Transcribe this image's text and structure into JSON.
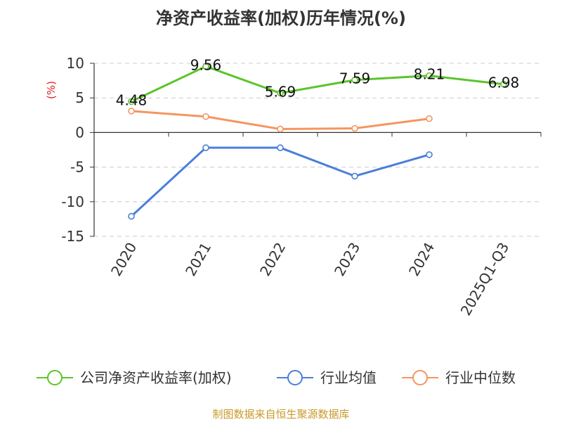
{
  "chart_data": {
    "type": "line",
    "title": "净资产收益率(加权)历年情况(%)",
    "ylabel": "(%)",
    "xlabel": "",
    "categories": [
      "2020",
      "2021",
      "2022",
      "2023",
      "2024",
      "2025Q1-Q3"
    ],
    "ylim": [
      -15,
      10
    ],
    "yticks": [
      10,
      5,
      0,
      -5,
      -10,
      -15
    ],
    "grid": true,
    "legend_position": "bottom",
    "series": [
      {
        "name": "公司净资产收益率(加权)",
        "color": "#5bc42a",
        "values": [
          4.48,
          9.56,
          5.69,
          7.59,
          8.21,
          6.98
        ],
        "labels": [
          "4.48",
          "9.56",
          "5.69",
          "7.59",
          "8.21",
          "6.98"
        ]
      },
      {
        "name": "行业均值",
        "color": "#4a7fd8",
        "values": [
          -12.1,
          -2.2,
          -2.2,
          -6.3,
          -3.2,
          null
        ]
      },
      {
        "name": "行业中位数",
        "color": "#f59560",
        "values": [
          3.1,
          2.3,
          0.5,
          0.6,
          2.0,
          null
        ]
      }
    ]
  },
  "footer": {
    "source": "制图数据来自恒生聚源数据库"
  }
}
